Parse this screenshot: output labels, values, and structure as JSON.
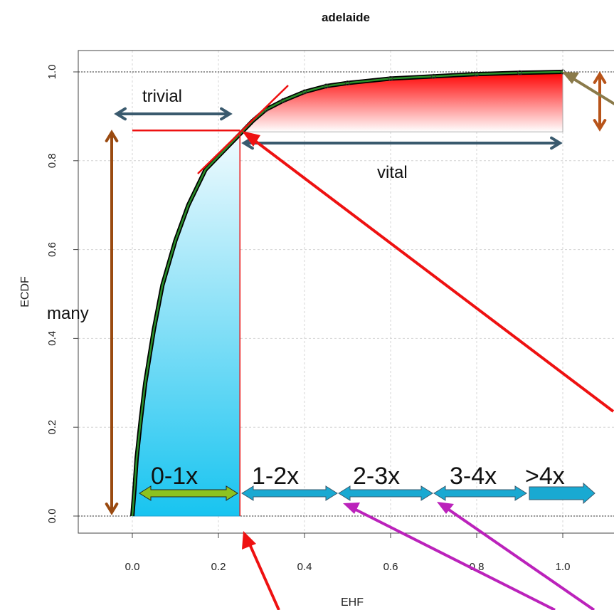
{
  "chart_data": {
    "type": "line",
    "title": "adelaide",
    "xlabel": "EHF",
    "ylabel": "ECDF",
    "xlim": [
      -0.11,
      1.12
    ],
    "ylim": [
      -0.04,
      1.05
    ],
    "xticks": [
      "0.0",
      "0.2",
      "0.4",
      "0.6",
      "0.8",
      "1.0"
    ],
    "yticks": [
      "0.0",
      "0.2",
      "0.4",
      "0.6",
      "0.8",
      "1.0"
    ],
    "grid": true,
    "series": [
      {
        "x": [
          0.0,
          0.005,
          0.01,
          0.02,
          0.03,
          0.05,
          0.07,
          0.1,
          0.13,
          0.17,
          0.21,
          0.25,
          0.28,
          0.31,
          0.35,
          0.4,
          0.45,
          0.5,
          0.6,
          0.7,
          0.8,
          0.9,
          1.0
        ],
        "y": [
          0.0,
          0.06,
          0.13,
          0.22,
          0.3,
          0.42,
          0.52,
          0.62,
          0.7,
          0.78,
          0.82,
          0.86,
          0.89,
          0.915,
          0.935,
          0.955,
          0.968,
          0.975,
          0.985,
          0.99,
          0.995,
          0.998,
          1.0
        ]
      }
    ],
    "annotations": {
      "trivial": "trivial",
      "vital": "vital",
      "many": "many",
      "bins": [
        "0-1x",
        "1-2x",
        "2-3x",
        "3-4x",
        ">4x"
      ]
    },
    "threshold": {
      "x": 0.25,
      "y": 0.865
    }
  }
}
